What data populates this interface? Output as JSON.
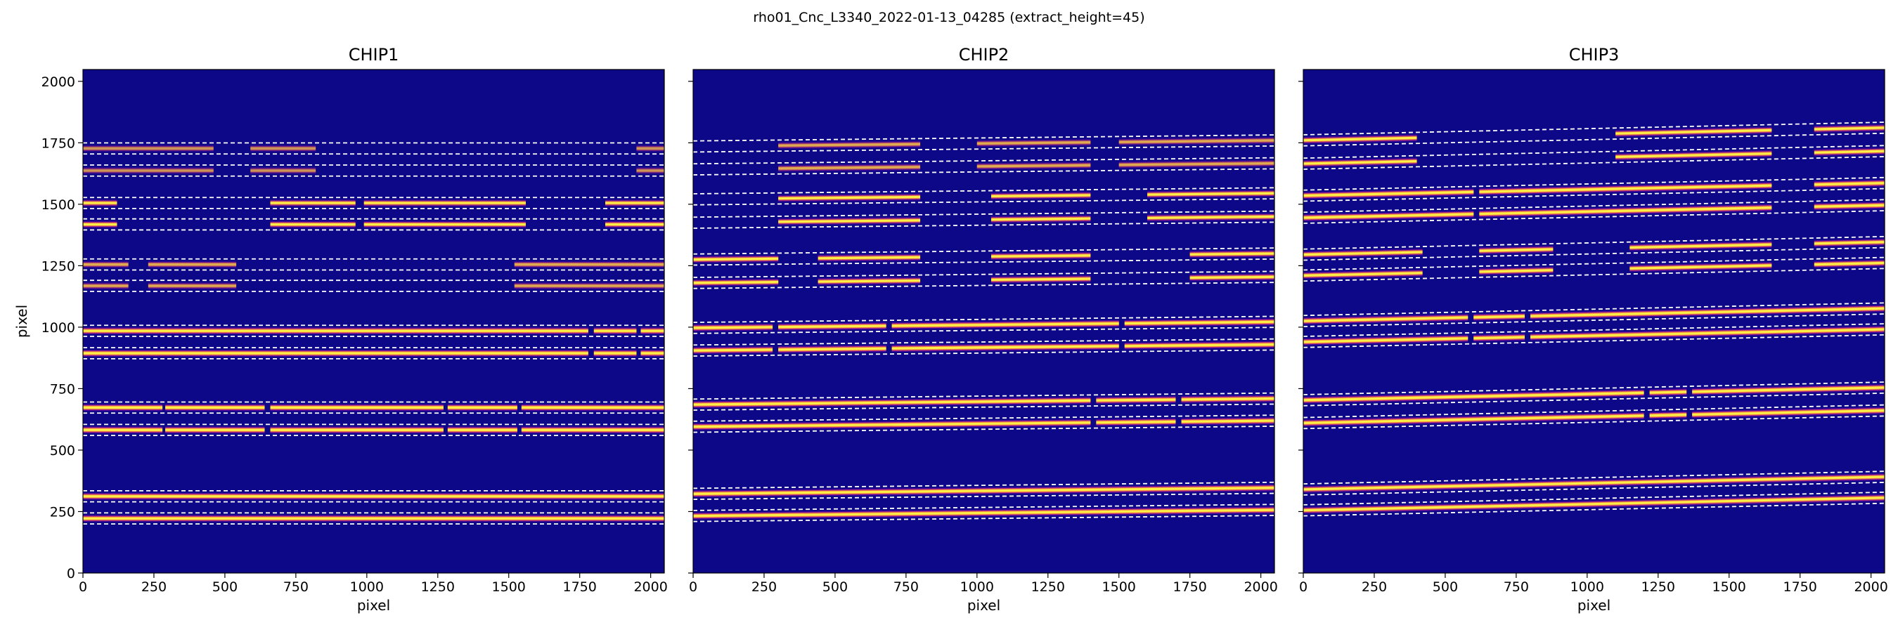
{
  "figure": {
    "suptitle": "rho01_Cnc_L3340_2022-01-13_04285  (extract_height=45)",
    "colors": {
      "background": "#0d0887",
      "trace_core": "#fdee47",
      "trace_mid": "#f78a3b",
      "trace_edge": "#cc4778",
      "trace_faint": "#7e03a8",
      "boundary_line": "#ffffff"
    }
  },
  "chart_data": [
    {
      "type": "heatmap",
      "title": "CHIP1",
      "xlabel": "pixel",
      "ylabel": "pixel",
      "xlim": [
        0,
        2048
      ],
      "ylim": [
        0,
        2048
      ],
      "xticks": [
        0,
        250,
        500,
        750,
        1000,
        1250,
        1500,
        1750,
        2000
      ],
      "yticks": [
        0,
        250,
        500,
        750,
        1000,
        1250,
        1500,
        1750,
        2000
      ],
      "extract_height": 45,
      "orders": [
        {
          "center": 222,
          "slope": 0.0,
          "segments": [
            [
              0,
              2048
            ]
          ],
          "intensity": 1.0
        },
        {
          "center": 312,
          "slope": 0.0,
          "segments": [
            [
              0,
              2048
            ]
          ],
          "intensity": 1.0
        },
        {
          "center": 582,
          "slope": 0.0,
          "segments": [
            [
              0,
              280
            ],
            [
              290,
              640
            ],
            [
              660,
              1270
            ],
            [
              1285,
              1530
            ],
            [
              1545,
              2048
            ]
          ],
          "intensity": 1.0
        },
        {
          "center": 673,
          "slope": 0.0,
          "segments": [
            [
              0,
              280
            ],
            [
              290,
              640
            ],
            [
              660,
              1270
            ],
            [
              1285,
              1530
            ],
            [
              1545,
              2048
            ]
          ],
          "intensity": 1.0
        },
        {
          "center": 894,
          "slope": 0.0,
          "segments": [
            [
              0,
              1780
            ],
            [
              1800,
              1950
            ],
            [
              1965,
              2048
            ]
          ],
          "intensity": 1.0
        },
        {
          "center": 985,
          "slope": 0.0,
          "segments": [
            [
              0,
              1780
            ],
            [
              1800,
              1950
            ],
            [
              1965,
              2048
            ]
          ],
          "intensity": 1.0
        },
        {
          "center": 1168,
          "slope": 0.0,
          "segments": [
            [
              0,
              160
            ],
            [
              230,
              540
            ],
            [
              1520,
              2048
            ]
          ],
          "intensity": 0.55
        },
        {
          "center": 1255,
          "slope": 0.0,
          "segments": [
            [
              0,
              160
            ],
            [
              230,
              540
            ],
            [
              1520,
              2048
            ]
          ],
          "intensity": 0.55
        },
        {
          "center": 1418,
          "slope": 0.0,
          "segments": [
            [
              0,
              120
            ],
            [
              660,
              960
            ],
            [
              990,
              1560
            ],
            [
              1840,
              2048
            ]
          ],
          "intensity": 0.8
        },
        {
          "center": 1505,
          "slope": 0.0,
          "segments": [
            [
              0,
              120
            ],
            [
              660,
              960
            ],
            [
              990,
              1560
            ],
            [
              1840,
              2048
            ]
          ],
          "intensity": 0.8
        },
        {
          "center": 1637,
          "slope": 0.0,
          "segments": [
            [
              0,
              460
            ],
            [
              590,
              820
            ],
            [
              1950,
              2048
            ]
          ],
          "intensity": 0.45
        },
        {
          "center": 1727,
          "slope": 0.0,
          "segments": [
            [
              0,
              460
            ],
            [
              590,
              820
            ],
            [
              1950,
              2048
            ]
          ],
          "intensity": 0.45
        }
      ]
    },
    {
      "type": "heatmap",
      "title": "CHIP2",
      "xlabel": "pixel",
      "ylabel": "",
      "xlim": [
        0,
        2048
      ],
      "ylim": [
        0,
        2048
      ],
      "xticks": [
        0,
        250,
        500,
        750,
        1000,
        1250,
        1500,
        1750,
        2000
      ],
      "yticks": [
        0,
        250,
        500,
        750,
        1000,
        1250,
        1500,
        1750,
        2000
      ],
      "extract_height": 45,
      "orders": [
        {
          "center": 232,
          "slope": 0.012,
          "segments": [
            [
              0,
              2048
            ]
          ],
          "intensity": 1.0
        },
        {
          "center": 322,
          "slope": 0.012,
          "segments": [
            [
              0,
              2048
            ]
          ],
          "intensity": 1.0
        },
        {
          "center": 595,
          "slope": 0.012,
          "segments": [
            [
              0,
              1400
            ],
            [
              1420,
              1700
            ],
            [
              1720,
              2048
            ]
          ],
          "intensity": 1.0
        },
        {
          "center": 685,
          "slope": 0.012,
          "segments": [
            [
              0,
              1400
            ],
            [
              1420,
              1700
            ],
            [
              1720,
              2048
            ]
          ],
          "intensity": 1.0
        },
        {
          "center": 905,
          "slope": 0.012,
          "segments": [
            [
              0,
              280
            ],
            [
              300,
              680
            ],
            [
              700,
              1500
            ],
            [
              1520,
              2048
            ]
          ],
          "intensity": 1.0
        },
        {
          "center": 997,
          "slope": 0.012,
          "segments": [
            [
              0,
              280
            ],
            [
              300,
              680
            ],
            [
              700,
              1500
            ],
            [
              1520,
              2048
            ]
          ],
          "intensity": 1.0
        },
        {
          "center": 1180,
          "slope": 0.012,
          "segments": [
            [
              0,
              300
            ],
            [
              440,
              800
            ],
            [
              1050,
              1400
            ],
            [
              1750,
              2048
            ]
          ],
          "intensity": 0.85
        },
        {
          "center": 1275,
          "slope": 0.012,
          "segments": [
            [
              0,
              300
            ],
            [
              440,
              800
            ],
            [
              1050,
              1400
            ],
            [
              1750,
              2048
            ]
          ],
          "intensity": 0.85
        },
        {
          "center": 1425,
          "slope": 0.012,
          "segments": [
            [
              300,
              800
            ],
            [
              1050,
              1400
            ],
            [
              1600,
              2048
            ]
          ],
          "intensity": 0.8
        },
        {
          "center": 1520,
          "slope": 0.012,
          "segments": [
            [
              300,
              800
            ],
            [
              1050,
              1400
            ],
            [
              1600,
              2048
            ]
          ],
          "intensity": 0.8
        },
        {
          "center": 1642,
          "slope": 0.012,
          "segments": [
            [
              300,
              800
            ],
            [
              1000,
              1400
            ],
            [
              1500,
              2048
            ]
          ],
          "intensity": 0.55
        },
        {
          "center": 1735,
          "slope": 0.012,
          "segments": [
            [
              300,
              800
            ],
            [
              1000,
              1400
            ],
            [
              1500,
              2048
            ]
          ],
          "intensity": 0.55
        }
      ]
    },
    {
      "type": "heatmap",
      "title": "CHIP3",
      "xlabel": "pixel",
      "ylabel": "",
      "xlim": [
        0,
        2048
      ],
      "ylim": [
        0,
        2048
      ],
      "xticks": [
        0,
        250,
        500,
        750,
        1000,
        1250,
        1500,
        1750,
        2000
      ],
      "yticks": [
        0,
        250,
        500,
        750,
        1000,
        1250,
        1500,
        1750,
        2000
      ],
      "extract_height": 45,
      "orders": [
        {
          "center": 255,
          "slope": 0.025,
          "segments": [
            [
              0,
              2048
            ]
          ],
          "intensity": 0.9
        },
        {
          "center": 340,
          "slope": 0.025,
          "segments": [
            [
              0,
              2048
            ]
          ],
          "intensity": 0.9
        },
        {
          "center": 610,
          "slope": 0.025,
          "segments": [
            [
              0,
              1200
            ],
            [
              1220,
              1350
            ],
            [
              1370,
              2048
            ]
          ],
          "intensity": 1.0
        },
        {
          "center": 703,
          "slope": 0.025,
          "segments": [
            [
              0,
              1200
            ],
            [
              1220,
              1350
            ],
            [
              1370,
              2048
            ]
          ],
          "intensity": 1.0
        },
        {
          "center": 940,
          "slope": 0.025,
          "segments": [
            [
              0,
              580
            ],
            [
              600,
              780
            ],
            [
              800,
              2048
            ]
          ],
          "intensity": 1.0
        },
        {
          "center": 1025,
          "slope": 0.025,
          "segments": [
            [
              0,
              580
            ],
            [
              600,
              780
            ],
            [
              800,
              2048
            ]
          ],
          "intensity": 1.0
        },
        {
          "center": 1210,
          "slope": 0.025,
          "segments": [
            [
              0,
              420
            ],
            [
              620,
              880
            ],
            [
              1150,
              1650
            ],
            [
              1800,
              2048
            ]
          ],
          "intensity": 0.85
        },
        {
          "center": 1295,
          "slope": 0.025,
          "segments": [
            [
              0,
              420
            ],
            [
              620,
              880
            ],
            [
              1150,
              1650
            ],
            [
              1800,
              2048
            ]
          ],
          "intensity": 0.85
        },
        {
          "center": 1445,
          "slope": 0.025,
          "segments": [
            [
              0,
              600
            ],
            [
              620,
              1650
            ],
            [
              1800,
              2048
            ]
          ],
          "intensity": 1.0
        },
        {
          "center": 1535,
          "slope": 0.025,
          "segments": [
            [
              0,
              600
            ],
            [
              620,
              1650
            ],
            [
              1800,
              2048
            ]
          ],
          "intensity": 1.0
        },
        {
          "center": 1665,
          "slope": 0.025,
          "segments": [
            [
              0,
              400
            ],
            [
              1100,
              1650
            ],
            [
              1800,
              2048
            ]
          ],
          "intensity": 0.85
        },
        {
          "center": 1760,
          "slope": 0.025,
          "segments": [
            [
              0,
              400
            ],
            [
              1100,
              1650
            ],
            [
              1800,
              2048
            ]
          ],
          "intensity": 0.85
        }
      ]
    }
  ]
}
